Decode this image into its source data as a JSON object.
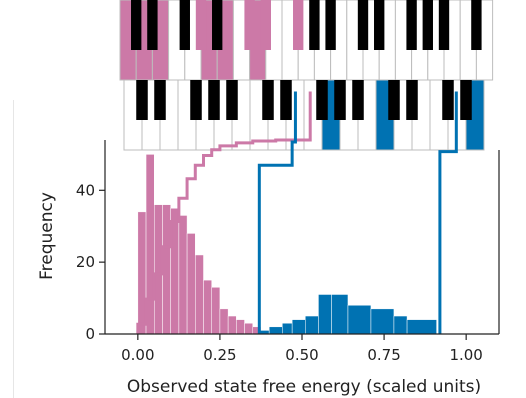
{
  "chart_data": {
    "type": "bar",
    "xlabel": "Observed state free energy (scaled units)",
    "ylabel": "Frequency",
    "xlim": [
      -0.1,
      1.1
    ],
    "ylim": [
      0,
      54
    ],
    "grid": false,
    "xticks": [
      0.0,
      0.25,
      0.5,
      0.75,
      1.0
    ],
    "xtick_labels": [
      "0.00",
      "0.25",
      "0.50",
      "0.75",
      "1.00"
    ],
    "yticks": [
      0,
      20,
      40
    ],
    "ytick_labels": [
      "0",
      "20",
      "40"
    ],
    "series": [
      {
        "color": "#cc79a7",
        "style": "filled",
        "bins": [
          {
            "x0": 0.0,
            "x1": 0.025,
            "count": 34
          },
          {
            "x0": 0.025,
            "x1": 0.05,
            "count": 50
          },
          {
            "x0": 0.05,
            "x1": 0.075,
            "count": 36
          },
          {
            "x0": 0.075,
            "x1": 0.1,
            "count": 36
          },
          {
            "x0": 0.1,
            "x1": 0.125,
            "count": 35
          },
          {
            "x0": 0.125,
            "x1": 0.15,
            "count": 33
          },
          {
            "x0": 0.15,
            "x1": 0.175,
            "count": 28
          },
          {
            "x0": 0.175,
            "x1": 0.2,
            "count": 22
          },
          {
            "x0": 0.2,
            "x1": 0.225,
            "count": 15
          },
          {
            "x0": 0.225,
            "x1": 0.25,
            "count": 13
          },
          {
            "x0": 0.25,
            "x1": 0.275,
            "count": 7
          },
          {
            "x0": 0.275,
            "x1": 0.3,
            "count": 5
          },
          {
            "x0": 0.3,
            "x1": 0.325,
            "count": 4
          },
          {
            "x0": 0.325,
            "x1": 0.35,
            "count": 3
          },
          {
            "x0": 0.35,
            "x1": 0.375,
            "count": 2
          },
          {
            "x0": 0.375,
            "x1": 0.4,
            "count": 1
          },
          {
            "x0": 0.4,
            "x1": 0.425,
            "count": 1
          }
        ],
        "cumulative_outline": [
          [
            0.0,
            0
          ],
          [
            0.0,
            0.05
          ],
          [
            0.025,
            0.18
          ],
          [
            0.05,
            0.31
          ],
          [
            0.075,
            0.45
          ],
          [
            0.1,
            0.58
          ],
          [
            0.125,
            0.7
          ],
          [
            0.15,
            0.8
          ],
          [
            0.175,
            0.87
          ],
          [
            0.2,
            0.92
          ],
          [
            0.225,
            0.95
          ],
          [
            0.25,
            0.97
          ],
          [
            0.3,
            0.985
          ],
          [
            0.35,
            0.995
          ],
          [
            0.42,
            1.0
          ],
          [
            0.52,
            1.0
          ],
          [
            0.525,
            1.25
          ]
        ]
      },
      {
        "color": "#0072b2",
        "style": "filled",
        "bins": [
          {
            "x0": 0.37,
            "x1": 0.4,
            "count": 1
          },
          {
            "x0": 0.4,
            "x1": 0.44,
            "count": 2
          },
          {
            "x0": 0.44,
            "x1": 0.47,
            "count": 3
          },
          {
            "x0": 0.47,
            "x1": 0.51,
            "count": 4
          },
          {
            "x0": 0.51,
            "x1": 0.55,
            "count": 5
          },
          {
            "x0": 0.55,
            "x1": 0.59,
            "count": 11
          },
          {
            "x0": 0.59,
            "x1": 0.64,
            "count": 11
          },
          {
            "x0": 0.64,
            "x1": 0.71,
            "count": 8
          },
          {
            "x0": 0.71,
            "x1": 0.78,
            "count": 7
          },
          {
            "x0": 0.78,
            "x1": 0.82,
            "count": 5
          },
          {
            "x0": 0.82,
            "x1": 0.91,
            "count": 4
          }
        ],
        "cumulative_outline": [
          [
            0.37,
            0
          ],
          [
            0.37,
            0.87
          ],
          [
            0.47,
            0.87
          ],
          [
            0.47,
            0.99
          ],
          [
            0.48,
            1.25
          ]
        ],
        "cumulative_outline_2": [
          [
            0.92,
            0
          ],
          [
            0.92,
            0.94
          ],
          [
            0.97,
            0.94
          ],
          [
            0.97,
            1.25
          ]
        ]
      }
    ],
    "keyboards": [
      {
        "row": "top",
        "octaves": 2,
        "white_keys_highlighted_pink": [
          0,
          1,
          2,
          5,
          6,
          8
        ],
        "black_keys_highlighted_pink": [
          3,
          5,
          6,
          7
        ],
        "black_keys_highlighted_blue": []
      },
      {
        "row": "bottom",
        "octaves": 3,
        "white_keys_highlighted_pink": [],
        "black_keys_highlighted_pink": [],
        "white_keys_highlighted_blue": [
          11,
          14,
          19
        ],
        "black_keys_highlighted_blue": []
      }
    ],
    "colors": {
      "pink": "#cc79a7",
      "blue": "#0072b2",
      "axis": "#222222"
    }
  }
}
